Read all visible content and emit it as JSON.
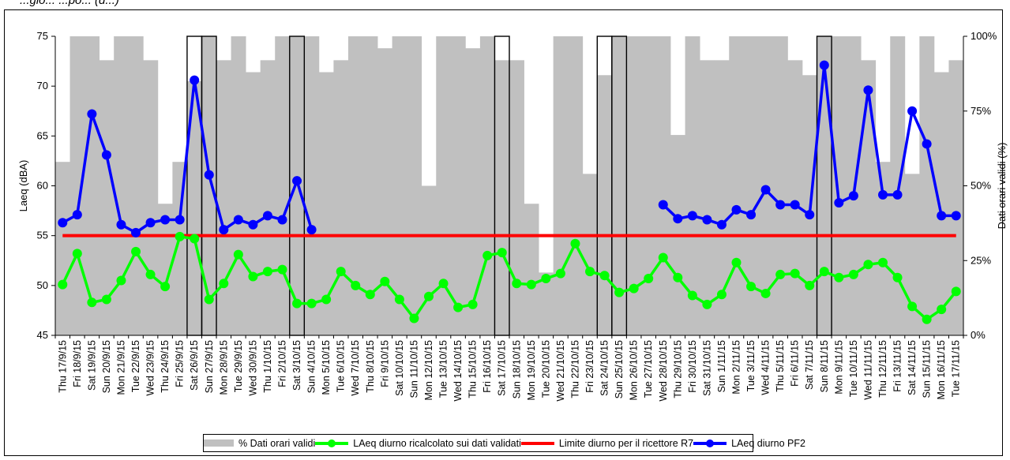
{
  "header_fragment": "...gio... ...po... (d...)",
  "chart_data": {
    "type": "bar+line",
    "ylabel_left": "Laeq (dBA)",
    "ylabel_right": "Dati orari validi (%)",
    "ylim_left": [
      45,
      75
    ],
    "yticks_left": [
      "45",
      "50",
      "55",
      "60",
      "65",
      "70",
      "75"
    ],
    "ylim_right": [
      0,
      100
    ],
    "yticks_right": [
      "0%",
      "25%",
      "50%",
      "75%",
      "100%"
    ],
    "categories": [
      "Thu 17/9/15",
      "Fri 18/9/15",
      "Sat 19/9/15",
      "Sun 20/9/15",
      "Mon 21/9/15",
      "Tue 22/9/15",
      "Wed 23/9/15",
      "Thu 24/9/15",
      "Fri 25/9/15",
      "Sat 26/9/15",
      "Sun 27/9/15",
      "Mon 28/9/15",
      "Tue 29/9/15",
      "Wed 30/9/15",
      "Thu 1/10/15",
      "Fri 2/10/15",
      "Sat 3/10/15",
      "Sun 4/10/15",
      "Mon 5/10/15",
      "Tue 6/10/15",
      "Wed 7/10/15",
      "Thu 8/10/15",
      "Fri 9/10/15",
      "Sat 10/10/15",
      "Sun 11/10/15",
      "Mon 12/10/15",
      "Tue 13/10/15",
      "Wed 14/10/15",
      "Thu 15/10/15",
      "Fri 16/10/15",
      "Sat 17/10/15",
      "Sun 18/10/15",
      "Mon 19/10/15",
      "Tue 20/10/15",
      "Wed 21/10/15",
      "Thu 22/10/15",
      "Fri 23/10/15",
      "Sat 24/10/15",
      "Sun 25/10/15",
      "Mon 26/10/15",
      "Tue 27/10/15",
      "Wed 28/10/15",
      "Thu 29/10/15",
      "Fri 30/10/15",
      "Sat 31/10/15",
      "Sun 1/11/15",
      "Mon 2/11/15",
      "Tue 3/11/15",
      "Wed 4/11/15",
      "Thu 5/11/15",
      "Fri 6/11/15",
      "Sat 7/11/15",
      "Sun 8/11/15",
      "Mon 9/11/15",
      "Tue 10/11/15",
      "Wed 11/11/15",
      "Thu 12/11/15",
      "Fri 13/11/15",
      "Sat 14/11/15",
      "Sun 15/11/15",
      "Mon 16/11/15",
      "Tue 17/11/15"
    ],
    "highlighted": [
      "Sat 26/9/15",
      "Sun 27/9/15",
      "Sat 3/10/15",
      "Sat 17/10/15",
      "Sat 24/10/15",
      "Sun 25/10/15",
      "Sun 8/11/15"
    ],
    "series": [
      {
        "name": "% Dati orari validi",
        "type": "bar",
        "axis": "right",
        "color": "#c0c0c0",
        "values": [
          58,
          100,
          100,
          92,
          100,
          100,
          92,
          44,
          58,
          85,
          100,
          92,
          100,
          88,
          92,
          100,
          100,
          100,
          88,
          92,
          100,
          100,
          96,
          100,
          100,
          50,
          100,
          100,
          96,
          100,
          92,
          92,
          44,
          21,
          100,
          100,
          54,
          87,
          100,
          100,
          100,
          100,
          67,
          100,
          92,
          92,
          100,
          100,
          100,
          100,
          92,
          87,
          100,
          100,
          100,
          92,
          58,
          100,
          54,
          100,
          88,
          92
        ]
      },
      {
        "name": "LAeq diurno ricalcolato sui dati validati",
        "type": "line",
        "axis": "left",
        "color": "#00ff00",
        "values": [
          50.1,
          53.2,
          48.3,
          48.6,
          50.5,
          53.4,
          51.1,
          49.9,
          54.9,
          54.7,
          48.6,
          50.2,
          53.1,
          50.9,
          51.4,
          51.6,
          48.2,
          48.2,
          48.6,
          51.4,
          50,
          49.1,
          50.4,
          48.6,
          46.7,
          48.9,
          50.2,
          47.8,
          48.1,
          53,
          53.3,
          50.2,
          50.1,
          50.7,
          51.2,
          54.2,
          51.4,
          51,
          49.3,
          49.7,
          50.7,
          52.8,
          50.8,
          49,
          48.1,
          49.1,
          52.3,
          49.9,
          49.2,
          51.1,
          51.2,
          50,
          51.4,
          50.8,
          51.1,
          52.1,
          52.3,
          50.8,
          47.9,
          46.6,
          47.6,
          49.4
        ]
      },
      {
        "name": "Limite diurno per il ricettore R7",
        "type": "line",
        "axis": "left",
        "color": "#ff0000",
        "values": [
          55,
          55,
          55,
          55,
          55,
          55,
          55,
          55,
          55,
          55,
          55,
          55,
          55,
          55,
          55,
          55,
          55,
          55,
          55,
          55,
          55,
          55,
          55,
          55,
          55,
          55,
          55,
          55,
          55,
          55,
          55,
          55,
          55,
          55,
          55,
          55,
          55,
          55,
          55,
          55,
          55,
          55,
          55,
          55,
          55,
          55,
          55,
          55,
          55,
          55,
          55,
          55,
          55,
          55,
          55,
          55,
          55,
          55,
          55,
          55,
          55,
          55
        ]
      },
      {
        "name": "LAeq diurno PF2",
        "type": "line",
        "axis": "left",
        "color": "#0000ff",
        "values": [
          56.3,
          57.1,
          67.2,
          63.1,
          56.1,
          55.3,
          56.3,
          56.6,
          56.6,
          70.6,
          61.1,
          55.6,
          56.6,
          56.1,
          57,
          56.6,
          60.5,
          55.6,
          null,
          null,
          null,
          null,
          null,
          null,
          null,
          null,
          null,
          null,
          null,
          null,
          null,
          null,
          null,
          null,
          null,
          null,
          null,
          null,
          null,
          null,
          null,
          58.1,
          56.7,
          57,
          56.6,
          56.1,
          57.6,
          57.1,
          59.6,
          58.1,
          58.1,
          57.1,
          72.1,
          58.3,
          59,
          69.6,
          59.1,
          59.1,
          67.5,
          64.2,
          57,
          57
        ]
      }
    ]
  }
}
